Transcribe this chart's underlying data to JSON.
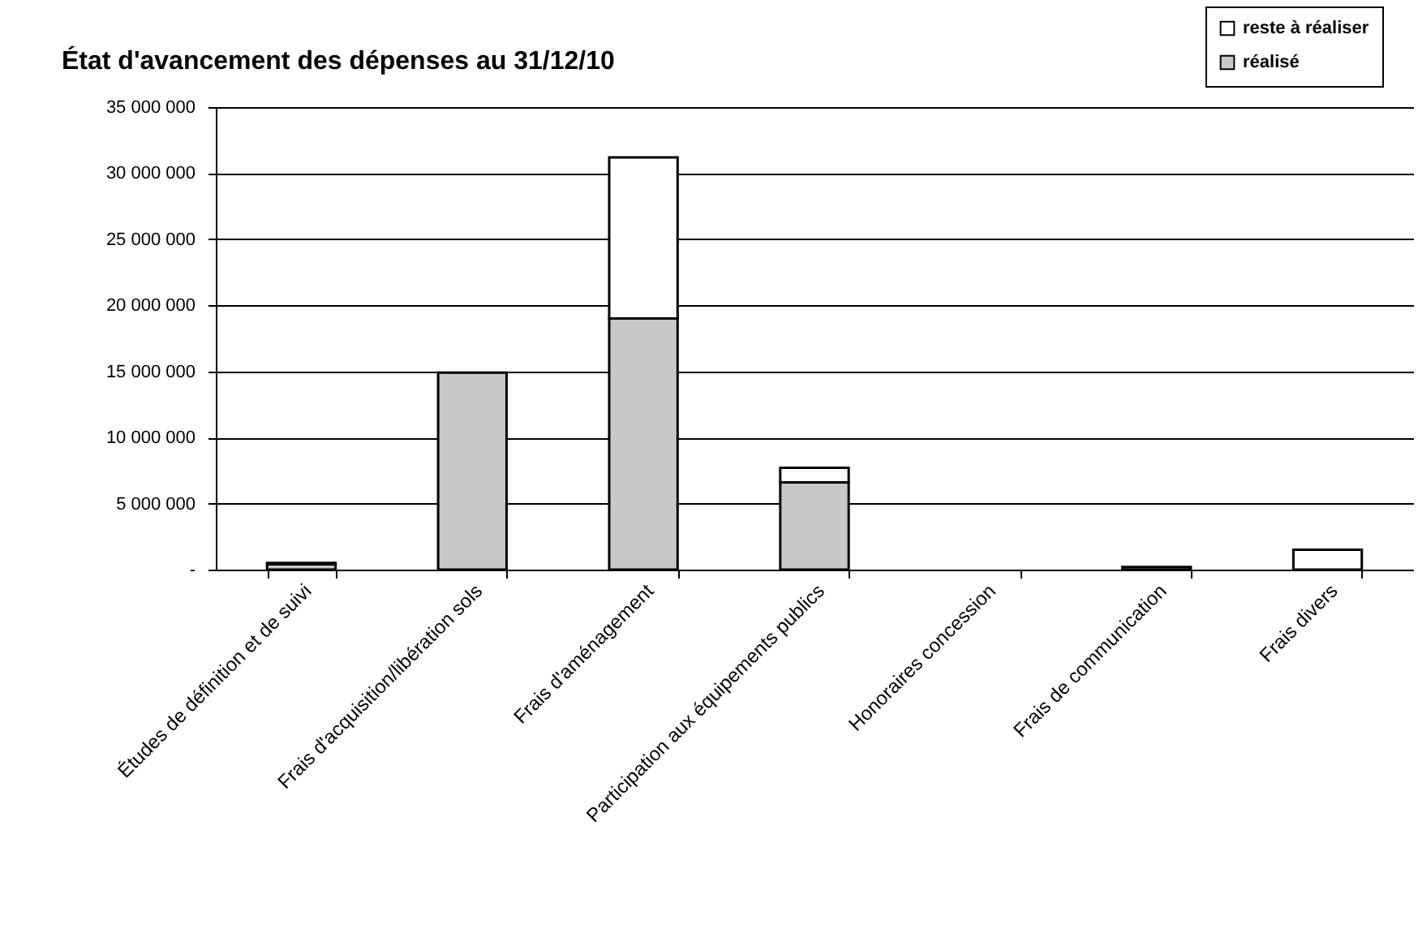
{
  "chart_data": {
    "type": "bar",
    "title": "État d'avancement des dépenses au 31/12/10",
    "categories": [
      "Études de définition et de suivi",
      "Frais d'acquisition/libération sols",
      "Frais d'aménagement",
      "Participation aux équipements publics",
      "Honoraires concession",
      "Frais de communication",
      "Frais divers"
    ],
    "series": [
      {
        "name": "réalisé",
        "color": "#c8c8c8",
        "values": [
          400000,
          14900000,
          19000000,
          6600000,
          null,
          200000,
          null
        ]
      },
      {
        "name": "reste à réaliser",
        "color": "#ffffff",
        "values": [
          100000,
          null,
          12200000,
          1100000,
          null,
          null,
          1500000
        ]
      }
    ],
    "stacked": true,
    "ylim": [
      0,
      35000000
    ],
    "yticks": [
      {
        "value": 0,
        "label": "-"
      },
      {
        "value": 5000000,
        "label": "5 000 000"
      },
      {
        "value": 10000000,
        "label": "10 000 000"
      },
      {
        "value": 15000000,
        "label": "15 000 000"
      },
      {
        "value": 20000000,
        "label": "20 000 000"
      },
      {
        "value": 25000000,
        "label": "25 000 000"
      },
      {
        "value": 30000000,
        "label": "30 000 000"
      },
      {
        "value": 35000000,
        "label": "35 000 000"
      }
    ],
    "grid": "y",
    "legend": "top right"
  }
}
